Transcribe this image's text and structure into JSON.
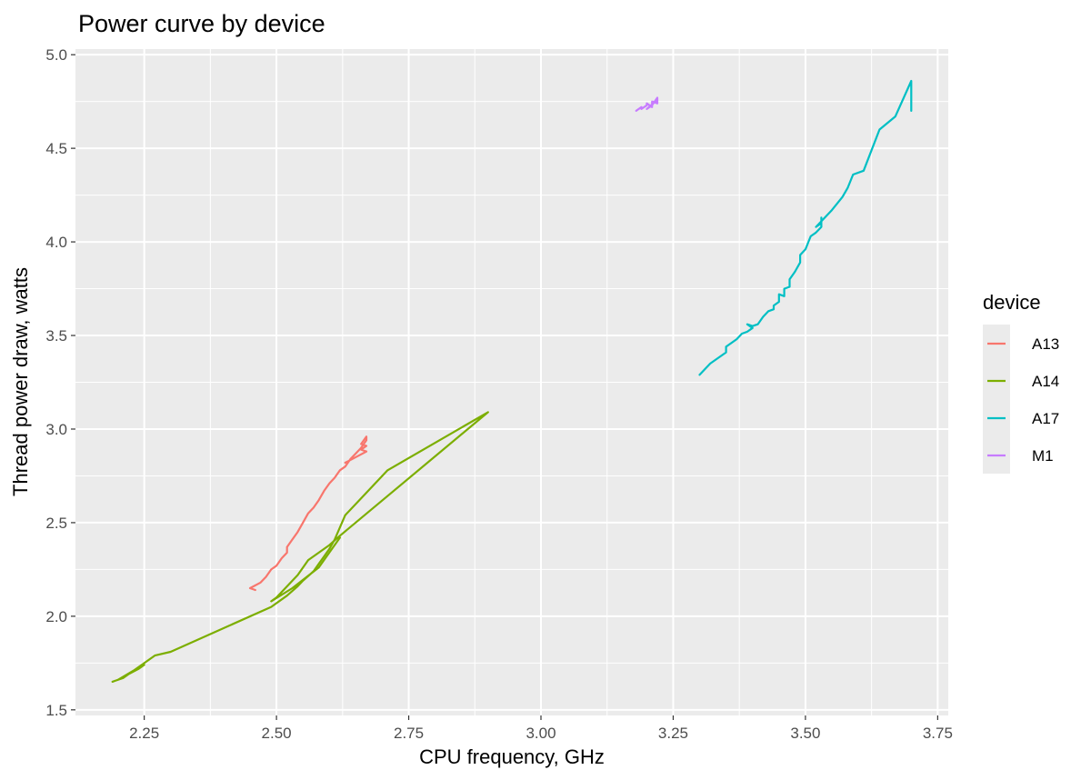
{
  "chart_data": {
    "type": "line",
    "title": "Power curve by device",
    "xlabel": "CPU frequency, GHz",
    "ylabel": "Thread power draw, watts",
    "xlim": [
      2.12,
      3.77
    ],
    "ylim": [
      1.47,
      5.03
    ],
    "x_ticks": [
      "2.25",
      "2.50",
      "2.75",
      "3.00",
      "3.25",
      "3.50",
      "3.75"
    ],
    "y_ticks": [
      "1.5",
      "2.0",
      "2.5",
      "3.0",
      "3.5",
      "4.0",
      "4.5",
      "5.0"
    ],
    "grid": true,
    "panel_background": "#ebebeb",
    "legend": {
      "title": "device",
      "position": "right"
    },
    "series": [
      {
        "name": "A13",
        "color": "#F8766D",
        "points": [
          [
            2.46,
            2.14
          ],
          [
            2.45,
            2.15
          ],
          [
            2.47,
            2.18
          ],
          [
            2.48,
            2.21
          ],
          [
            2.49,
            2.25
          ],
          [
            2.5,
            2.27
          ],
          [
            2.51,
            2.31
          ],
          [
            2.52,
            2.34
          ],
          [
            2.52,
            2.37
          ],
          [
            2.53,
            2.41
          ],
          [
            2.54,
            2.45
          ],
          [
            2.55,
            2.5
          ],
          [
            2.56,
            2.55
          ],
          [
            2.57,
            2.58
          ],
          [
            2.58,
            2.62
          ],
          [
            2.59,
            2.67
          ],
          [
            2.6,
            2.71
          ],
          [
            2.61,
            2.74
          ],
          [
            2.62,
            2.78
          ],
          [
            2.63,
            2.8
          ],
          [
            2.64,
            2.84
          ],
          [
            2.65,
            2.87
          ],
          [
            2.66,
            2.9
          ],
          [
            2.67,
            2.94
          ],
          [
            2.67,
            2.96
          ],
          [
            2.66,
            2.92
          ],
          [
            2.67,
            2.91
          ],
          [
            2.66,
            2.89
          ],
          [
            2.67,
            2.88
          ],
          [
            2.63,
            2.82
          ],
          [
            2.67,
            2.88
          ]
        ]
      },
      {
        "name": "A14",
        "color": "#7CAE00",
        "points": [
          [
            2.19,
            1.65
          ],
          [
            2.21,
            1.67
          ],
          [
            2.22,
            1.69
          ],
          [
            2.24,
            1.72
          ],
          [
            2.25,
            1.74
          ],
          [
            2.2,
            1.66
          ],
          [
            2.23,
            1.71
          ],
          [
            2.27,
            1.79
          ],
          [
            2.3,
            1.81
          ],
          [
            2.49,
            2.05
          ],
          [
            2.52,
            2.11
          ],
          [
            2.54,
            2.16
          ],
          [
            2.55,
            2.19
          ],
          [
            2.57,
            2.24
          ],
          [
            2.58,
            2.28
          ],
          [
            2.59,
            2.32
          ],
          [
            2.6,
            2.36
          ],
          [
            2.61,
            2.41
          ],
          [
            2.63,
            2.54
          ],
          [
            2.67,
            2.66
          ],
          [
            2.71,
            2.78
          ],
          [
            2.9,
            3.09
          ],
          [
            2.62,
            2.43
          ],
          [
            2.6,
            2.38
          ],
          [
            2.56,
            2.3
          ],
          [
            2.54,
            2.22
          ],
          [
            2.5,
            2.1
          ],
          [
            2.49,
            2.08
          ],
          [
            2.53,
            2.15
          ],
          [
            2.58,
            2.26
          ],
          [
            2.62,
            2.42
          ]
        ]
      },
      {
        "name": "A17",
        "color": "#00BFC4",
        "points": [
          [
            3.3,
            3.29
          ],
          [
            3.32,
            3.35
          ],
          [
            3.35,
            3.41
          ],
          [
            3.35,
            3.44
          ],
          [
            3.37,
            3.48
          ],
          [
            3.38,
            3.51
          ],
          [
            3.39,
            3.52
          ],
          [
            3.4,
            3.54
          ],
          [
            3.39,
            3.56
          ],
          [
            3.4,
            3.55
          ],
          [
            3.41,
            3.56
          ],
          [
            3.42,
            3.6
          ],
          [
            3.43,
            3.63
          ],
          [
            3.44,
            3.64
          ],
          [
            3.44,
            3.66
          ],
          [
            3.45,
            3.68
          ],
          [
            3.45,
            3.72
          ],
          [
            3.46,
            3.71
          ],
          [
            3.46,
            3.75
          ],
          [
            3.47,
            3.76
          ],
          [
            3.47,
            3.8
          ],
          [
            3.48,
            3.84
          ],
          [
            3.49,
            3.89
          ],
          [
            3.49,
            3.93
          ],
          [
            3.5,
            3.96
          ],
          [
            3.51,
            4.03
          ],
          [
            3.52,
            4.05
          ],
          [
            3.53,
            4.08
          ],
          [
            3.53,
            4.13
          ],
          [
            3.53,
            4.1
          ],
          [
            3.52,
            4.08
          ],
          [
            3.53,
            4.11
          ],
          [
            3.55,
            4.17
          ],
          [
            3.57,
            4.24
          ],
          [
            3.58,
            4.29
          ],
          [
            3.59,
            4.36
          ],
          [
            3.61,
            4.38
          ],
          [
            3.64,
            4.6
          ],
          [
            3.67,
            4.67
          ],
          [
            3.7,
            4.86
          ],
          [
            3.7,
            4.7
          ]
        ]
      },
      {
        "name": "M1",
        "color": "#C77CFF",
        "points": [
          [
            3.18,
            4.7
          ],
          [
            3.19,
            4.72
          ],
          [
            3.19,
            4.71
          ],
          [
            3.2,
            4.73
          ],
          [
            3.2,
            4.74
          ],
          [
            3.21,
            4.72
          ],
          [
            3.21,
            4.75
          ],
          [
            3.22,
            4.74
          ],
          [
            3.22,
            4.77
          ],
          [
            3.21,
            4.73
          ],
          [
            3.2,
            4.71
          ],
          [
            3.22,
            4.76
          ]
        ]
      }
    ]
  }
}
